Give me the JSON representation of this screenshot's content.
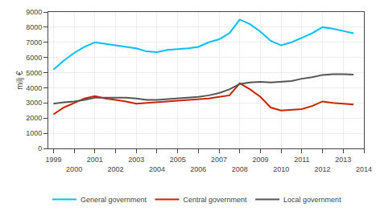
{
  "chart_data": {
    "type": "line",
    "ylabel": "milj €",
    "x": [
      1999,
      1999.5,
      2000,
      2000.5,
      2001,
      2001.5,
      2002,
      2002.5,
      2003,
      2003.5,
      2004,
      2004.5,
      2005,
      2005.5,
      2006,
      2006.5,
      2007,
      2007.5,
      2008,
      2008.5,
      2009,
      2009.5,
      2010,
      2010.5,
      2011,
      2011.5,
      2012,
      2012.5,
      2013,
      2013.5
    ],
    "series": [
      {
        "name": "General government",
        "color": "#00bfff",
        "values": [
          5200,
          5800,
          6300,
          6700,
          7000,
          6900,
          6800,
          6700,
          6600,
          6400,
          6350,
          6500,
          6550,
          6600,
          6700,
          7000,
          7200,
          7600,
          8500,
          8200,
          7700,
          7100,
          6800,
          7000,
          7300,
          7600,
          8000,
          7900,
          7750,
          7600
        ]
      },
      {
        "name": "Central government",
        "color": "#cc2200",
        "values": [
          2250,
          2700,
          3000,
          3300,
          3450,
          3300,
          3200,
          3100,
          2950,
          3000,
          3050,
          3100,
          3150,
          3200,
          3250,
          3300,
          3400,
          3500,
          4300,
          3900,
          3400,
          2700,
          2500,
          2550,
          2600,
          2800,
          3100,
          3000,
          2950,
          2900
        ]
      },
      {
        "name": "Local government",
        "color": "#555555",
        "values": [
          2950,
          3050,
          3100,
          3200,
          3350,
          3350,
          3350,
          3350,
          3300,
          3200,
          3200,
          3250,
          3300,
          3350,
          3400,
          3500,
          3650,
          3900,
          4250,
          4350,
          4400,
          4350,
          4400,
          4450,
          4600,
          4700,
          4850,
          4900,
          4900,
          4870
        ]
      }
    ],
    "xlim": [
      1998.75,
      2014.0
    ],
    "xticks": [
      1999,
      2000,
      2001,
      2002,
      2003,
      2004,
      2005,
      2006,
      2007,
      2008,
      2009,
      2010,
      2011,
      2012,
      2013,
      2014
    ],
    "ylim": [
      0,
      9000
    ],
    "yticks": [
      0,
      1000,
      2000,
      3000,
      4000,
      5000,
      6000,
      7000,
      8000,
      9000
    ],
    "grid": true,
    "legend": "lower left"
  }
}
